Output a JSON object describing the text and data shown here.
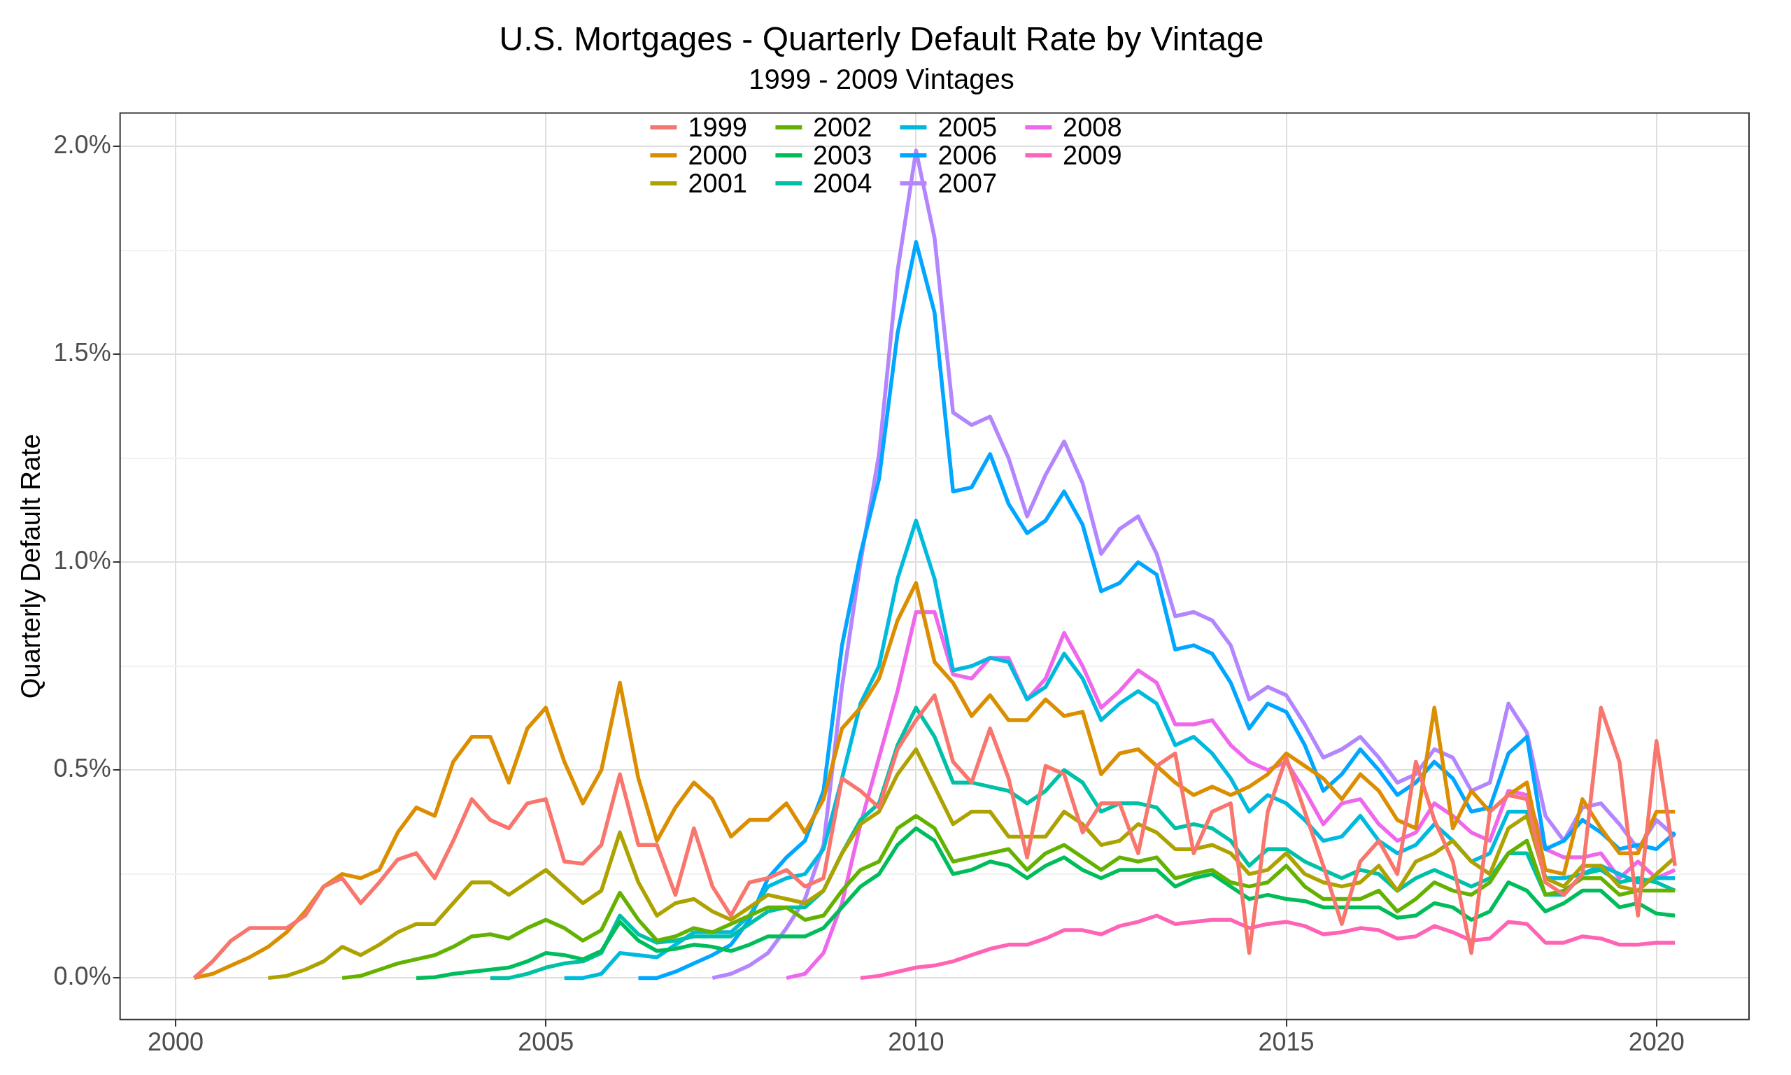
{
  "chart_data": {
    "type": "line",
    "title": "U.S. Mortgages - Quarterly Default Rate by Vintage",
    "subtitle": "1999 - 2009 Vintages",
    "ylabel": "Quarterly Default Rate",
    "x": [
      2000.25,
      2000.5,
      2000.75,
      2001,
      2001.25,
      2001.5,
      2001.75,
      2002,
      2002.25,
      2002.5,
      2002.75,
      2003,
      2003.25,
      2003.5,
      2003.75,
      2004,
      2004.25,
      2004.5,
      2004.75,
      2005,
      2005.25,
      2005.5,
      2005.75,
      2006,
      2006.25,
      2006.5,
      2006.75,
      2007,
      2007.25,
      2007.5,
      2007.75,
      2008,
      2008.25,
      2008.5,
      2008.75,
      2009,
      2009.25,
      2009.5,
      2009.75,
      2010,
      2010.25,
      2010.5,
      2010.75,
      2011,
      2011.25,
      2011.5,
      2011.75,
      2012,
      2012.25,
      2012.5,
      2012.75,
      2013,
      2013.25,
      2013.5,
      2013.75,
      2014,
      2014.25,
      2014.5,
      2014.75,
      2015,
      2015.25,
      2015.5,
      2015.75,
      2016,
      2016.25,
      2016.5,
      2016.75,
      2017,
      2017.25,
      2017.5,
      2017.75,
      2018,
      2018.25,
      2018.5,
      2018.75,
      2019,
      2019.25,
      2019.5,
      2019.75,
      2020,
      2020.25
    ],
    "xlim": [
      1999.25,
      2021.25
    ],
    "xticks": [
      2000,
      2005,
      2010,
      2015,
      2020
    ],
    "ylim": [
      -0.1,
      2.08
    ],
    "yticks": [
      {
        "value": 0,
        "label": "0.0%"
      },
      {
        "value": 0.25,
        "label": null
      },
      {
        "value": 0.5,
        "label": "0.5%"
      },
      {
        "value": 0.75,
        "label": null
      },
      {
        "value": 1,
        "label": "1.0%"
      },
      {
        "value": 1.25,
        "label": null
      },
      {
        "value": 1.5,
        "label": "1.5%"
      },
      {
        "value": 1.75,
        "label": null
      },
      {
        "value": 2,
        "label": "2.0%"
      }
    ],
    "grid": true,
    "legend": "top",
    "series": [
      {
        "name": "1999",
        "color": "#f8766d",
        "values": [
          0,
          0.04,
          0.09,
          0.12,
          0.12,
          0.12,
          0.15,
          0.22,
          0.24,
          0.18,
          0.23,
          0.285,
          0.3,
          0.24,
          0.33,
          0.43,
          0.38,
          0.36,
          0.42,
          0.43,
          0.28,
          0.275,
          0.32,
          0.49,
          0.32,
          0.32,
          0.2,
          0.36,
          0.22,
          0.15,
          0.23,
          0.24,
          0.26,
          0.22,
          0.24,
          0.48,
          0.45,
          0.41,
          0.55,
          0.62,
          0.68,
          0.52,
          0.47,
          0.6,
          0.48,
          0.29,
          0.51,
          0.49,
          0.35,
          0.42,
          0.42,
          0.3,
          0.51,
          0.54,
          0.3,
          0.4,
          0.42,
          0.06,
          0.4,
          0.53,
          0.4,
          0.27,
          0.13,
          0.28,
          0.33,
          0.25,
          0.52,
          0.38,
          0.28,
          0.06,
          0.4,
          0.44,
          0.43,
          0.23,
          0.2,
          0.25,
          0.65,
          0.52,
          0.15,
          0.57,
          0.27
        ]
      },
      {
        "name": "2000",
        "color": "#db8e00",
        "values": [
          0,
          0.01,
          0.03,
          0.05,
          0.075,
          0.11,
          0.16,
          0.22,
          0.25,
          0.24,
          0.26,
          0.35,
          0.41,
          0.39,
          0.52,
          0.58,
          0.58,
          0.47,
          0.6,
          0.65,
          0.52,
          0.42,
          0.5,
          0.71,
          0.48,
          0.33,
          0.41,
          0.47,
          0.43,
          0.34,
          0.38,
          0.38,
          0.42,
          0.35,
          0.43,
          0.6,
          0.65,
          0.72,
          0.86,
          0.95,
          0.76,
          0.71,
          0.63,
          0.68,
          0.62,
          0.62,
          0.67,
          0.63,
          0.64,
          0.49,
          0.54,
          0.55,
          0.51,
          0.47,
          0.44,
          0.46,
          0.44,
          0.46,
          0.49,
          0.54,
          0.51,
          0.48,
          0.43,
          0.49,
          0.45,
          0.38,
          0.36,
          0.65,
          0.36,
          0.45,
          0.4,
          0.44,
          0.47,
          0.26,
          0.25,
          0.43,
          0.36,
          0.3,
          0.3,
          0.4,
          0.4
        ]
      },
      {
        "name": "2001",
        "color": "#aea200",
        "values": [
          null,
          null,
          null,
          null,
          0,
          0.005,
          0.02,
          0.04,
          0.075,
          0.055,
          0.08,
          0.11,
          0.13,
          0.13,
          0.18,
          0.23,
          0.23,
          0.2,
          0.23,
          0.26,
          0.22,
          0.18,
          0.21,
          0.35,
          0.23,
          0.15,
          0.18,
          0.19,
          0.16,
          0.14,
          0.17,
          0.2,
          0.19,
          0.18,
          0.21,
          0.3,
          0.37,
          0.4,
          0.49,
          0.55,
          0.46,
          0.37,
          0.4,
          0.4,
          0.34,
          0.34,
          0.34,
          0.4,
          0.37,
          0.32,
          0.33,
          0.37,
          0.35,
          0.31,
          0.31,
          0.32,
          0.3,
          0.25,
          0.26,
          0.3,
          0.25,
          0.23,
          0.22,
          0.23,
          0.27,
          0.21,
          0.28,
          0.3,
          0.33,
          0.28,
          0.25,
          0.36,
          0.39,
          0.24,
          0.22,
          0.27,
          0.27,
          0.22,
          0.21,
          0.25,
          0.29
        ]
      },
      {
        "name": "2002",
        "color": "#64b200",
        "values": [
          null,
          null,
          null,
          null,
          null,
          null,
          null,
          null,
          0,
          0.005,
          0.02,
          0.035,
          0.045,
          0.055,
          0.075,
          0.1,
          0.105,
          0.095,
          0.12,
          0.14,
          0.12,
          0.09,
          0.115,
          0.205,
          0.14,
          0.09,
          0.1,
          0.12,
          0.11,
          0.13,
          0.15,
          0.17,
          0.17,
          0.14,
          0.15,
          0.21,
          0.26,
          0.28,
          0.36,
          0.39,
          0.36,
          0.28,
          0.29,
          0.3,
          0.31,
          0.26,
          0.3,
          0.32,
          0.29,
          0.26,
          0.29,
          0.28,
          0.29,
          0.24,
          0.25,
          0.26,
          0.23,
          0.22,
          0.23,
          0.27,
          0.22,
          0.19,
          0.19,
          0.19,
          0.21,
          0.16,
          0.19,
          0.23,
          0.21,
          0.2,
          0.23,
          0.3,
          0.33,
          0.2,
          0.21,
          0.24,
          0.24,
          0.2,
          0.21,
          0.21,
          0.21
        ]
      },
      {
        "name": "2003",
        "color": "#00bd5c",
        "values": [
          null,
          null,
          null,
          null,
          null,
          null,
          null,
          null,
          null,
          null,
          null,
          null,
          0,
          0.002,
          0.01,
          0.015,
          0.02,
          0.025,
          0.04,
          0.06,
          0.055,
          0.045,
          0.065,
          0.135,
          0.09,
          0.065,
          0.07,
          0.08,
          0.075,
          0.065,
          0.08,
          0.1,
          0.1,
          0.1,
          0.12,
          0.17,
          0.22,
          0.25,
          0.32,
          0.36,
          0.33,
          0.25,
          0.26,
          0.28,
          0.27,
          0.24,
          0.27,
          0.29,
          0.26,
          0.24,
          0.26,
          0.26,
          0.26,
          0.22,
          0.24,
          0.25,
          0.22,
          0.19,
          0.2,
          0.19,
          0.185,
          0.17,
          0.17,
          0.17,
          0.17,
          0.145,
          0.15,
          0.18,
          0.17,
          0.14,
          0.16,
          0.23,
          0.21,
          0.16,
          0.18,
          0.21,
          0.21,
          0.17,
          0.18,
          0.155,
          0.15
        ]
      },
      {
        "name": "2004",
        "color": "#00c1a7",
        "values": [
          null,
          null,
          null,
          null,
          null,
          null,
          null,
          null,
          null,
          null,
          null,
          null,
          null,
          null,
          null,
          null,
          0,
          0,
          0.01,
          0.025,
          0.035,
          0.04,
          0.06,
          0.15,
          0.105,
          0.085,
          0.09,
          0.1,
          0.1,
          0.1,
          0.13,
          0.16,
          0.17,
          0.17,
          0.21,
          0.3,
          0.38,
          0.42,
          0.56,
          0.65,
          0.58,
          0.47,
          0.47,
          0.46,
          0.45,
          0.42,
          0.45,
          0.5,
          0.47,
          0.4,
          0.42,
          0.42,
          0.41,
          0.36,
          0.37,
          0.36,
          0.33,
          0.27,
          0.31,
          0.31,
          0.28,
          0.26,
          0.24,
          0.26,
          0.25,
          0.21,
          0.24,
          0.26,
          0.24,
          0.22,
          0.24,
          0.3,
          0.3,
          0.2,
          0.2,
          0.25,
          0.26,
          0.23,
          0.24,
          0.23,
          0.21
        ]
      },
      {
        "name": "2005",
        "color": "#00bade",
        "values": [
          null,
          null,
          null,
          null,
          null,
          null,
          null,
          null,
          null,
          null,
          null,
          null,
          null,
          null,
          null,
          null,
          null,
          null,
          null,
          null,
          0,
          0,
          0.01,
          0.06,
          0.055,
          0.05,
          0.08,
          0.11,
          0.11,
          0.11,
          0.15,
          0.22,
          0.24,
          0.25,
          0.31,
          0.48,
          0.66,
          0.75,
          0.96,
          1.1,
          0.96,
          0.74,
          0.75,
          0.77,
          0.76,
          0.67,
          0.7,
          0.78,
          0.72,
          0.62,
          0.66,
          0.69,
          0.66,
          0.56,
          0.58,
          0.54,
          0.48,
          0.4,
          0.44,
          0.42,
          0.38,
          0.33,
          0.34,
          0.39,
          0.33,
          0.3,
          0.32,
          0.37,
          0.33,
          0.28,
          0.3,
          0.4,
          0.4,
          0.24,
          0.24,
          0.25,
          0.27,
          0.25,
          0.23,
          0.24,
          0.24
        ]
      },
      {
        "name": "2006",
        "color": "#00a6ff",
        "values": [
          null,
          null,
          null,
          null,
          null,
          null,
          null,
          null,
          null,
          null,
          null,
          null,
          null,
          null,
          null,
          null,
          null,
          null,
          null,
          null,
          null,
          null,
          null,
          null,
          0,
          0,
          0.015,
          0.035,
          0.055,
          0.08,
          0.14,
          0.24,
          0.29,
          0.33,
          0.45,
          0.8,
          1.02,
          1.2,
          1.55,
          1.77,
          1.6,
          1.17,
          1.18,
          1.26,
          1.14,
          1.07,
          1.1,
          1.17,
          1.09,
          0.93,
          0.95,
          1,
          0.97,
          0.79,
          0.8,
          0.78,
          0.71,
          0.6,
          0.66,
          0.64,
          0.56,
          0.45,
          0.49,
          0.55,
          0.5,
          0.44,
          0.47,
          0.52,
          0.48,
          0.4,
          0.41,
          0.54,
          0.58,
          0.31,
          0.33,
          0.38,
          0.35,
          0.31,
          0.32,
          0.31,
          0.35
        ]
      },
      {
        "name": "2007",
        "color": "#b385ff",
        "values": [
          null,
          null,
          null,
          null,
          null,
          null,
          null,
          null,
          null,
          null,
          null,
          null,
          null,
          null,
          null,
          null,
          null,
          null,
          null,
          null,
          null,
          null,
          null,
          null,
          null,
          null,
          null,
          null,
          0,
          0.01,
          0.03,
          0.06,
          0.12,
          0.19,
          0.32,
          0.7,
          1,
          1.26,
          1.7,
          1.99,
          1.78,
          1.36,
          1.33,
          1.35,
          1.25,
          1.11,
          1.21,
          1.29,
          1.19,
          1.02,
          1.08,
          1.11,
          1.02,
          0.87,
          0.88,
          0.86,
          0.8,
          0.67,
          0.7,
          0.68,
          0.61,
          0.53,
          0.55,
          0.58,
          0.53,
          0.47,
          0.49,
          0.55,
          0.53,
          0.45,
          0.47,
          0.66,
          0.59,
          0.39,
          0.33,
          0.41,
          0.42,
          0.37,
          0.31,
          0.38,
          0.34
        ]
      },
      {
        "name": "2008",
        "color": "#ef67eb",
        "values": [
          null,
          null,
          null,
          null,
          null,
          null,
          null,
          null,
          null,
          null,
          null,
          null,
          null,
          null,
          null,
          null,
          null,
          null,
          null,
          null,
          null,
          null,
          null,
          null,
          null,
          null,
          null,
          null,
          null,
          null,
          null,
          null,
          0,
          0.01,
          0.06,
          0.18,
          0.37,
          0.53,
          0.69,
          0.88,
          0.88,
          0.73,
          0.72,
          0.77,
          0.77,
          0.67,
          0.72,
          0.83,
          0.75,
          0.65,
          0.69,
          0.74,
          0.71,
          0.61,
          0.61,
          0.62,
          0.56,
          0.52,
          0.5,
          0.52,
          0.45,
          0.37,
          0.42,
          0.43,
          0.37,
          0.33,
          0.35,
          0.42,
          0.39,
          0.35,
          0.33,
          0.45,
          0.44,
          0.31,
          0.29,
          0.29,
          0.3,
          0.24,
          0.28,
          0.24,
          0.26
        ]
      },
      {
        "name": "2009",
        "color": "#ff63b6",
        "values": [
          null,
          null,
          null,
          null,
          null,
          null,
          null,
          null,
          null,
          null,
          null,
          null,
          null,
          null,
          null,
          null,
          null,
          null,
          null,
          null,
          null,
          null,
          null,
          null,
          null,
          null,
          null,
          null,
          null,
          null,
          null,
          null,
          null,
          null,
          null,
          null,
          0,
          0.005,
          0.015,
          0.025,
          0.03,
          0.04,
          0.055,
          0.07,
          0.08,
          0.08,
          0.095,
          0.115,
          0.115,
          0.105,
          0.125,
          0.135,
          0.15,
          0.13,
          0.135,
          0.14,
          0.14,
          0.12,
          0.13,
          0.135,
          0.125,
          0.105,
          0.11,
          0.12,
          0.115,
          0.095,
          0.1,
          0.125,
          0.11,
          0.09,
          0.095,
          0.135,
          0.13,
          0.085,
          0.085,
          0.1,
          0.095,
          0.08,
          0.08,
          0.085,
          0.085
        ]
      }
    ]
  }
}
